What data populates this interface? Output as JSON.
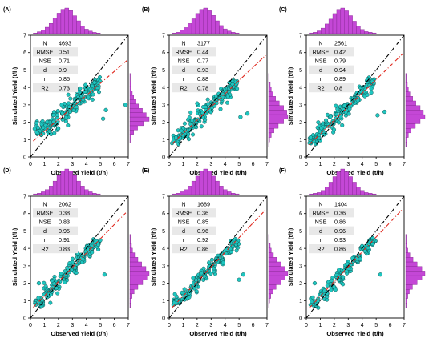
{
  "figure": {
    "colors": {
      "points": "#1fc6c0",
      "point_stroke": "#0b3b3a",
      "hist_fill": "#c447d6",
      "hist_stroke": "#7a1f86",
      "one_to_one": "#000000",
      "fit_line": "#e0271d",
      "stats_bg": "#e8e8e8"
    }
  },
  "chart_data": [
    {
      "panel": "(A)",
      "type": "scatter",
      "xlabel": "Observed Yield (t/h)",
      "ylabel": "Simulated Yield (t/h)",
      "xlim": [
        0,
        7
      ],
      "ylim": [
        0,
        7
      ],
      "xticks": [
        0,
        1,
        2,
        3,
        4,
        5,
        6,
        7
      ],
      "yticks": [
        0,
        1,
        2,
        3,
        4,
        5,
        6,
        7
      ],
      "stats": [
        {
          "label": "N",
          "value": "4693"
        },
        {
          "label": "RMSE",
          "value": "0.51"
        },
        {
          "label": "NSE",
          "value": "0.71"
        },
        {
          "label": "d",
          "value": "0.9"
        },
        {
          "label": "r",
          "value": "0.85"
        },
        {
          "label": "R2",
          "value": "0.73"
        }
      ],
      "fit_line": {
        "slope": 0.69,
        "intercept": 0.78
      },
      "one_to_one": true,
      "point_cloud": [
        {
          "x": 0.6,
          "y": 1.7,
          "spread_y": 0.55
        },
        {
          "x": 1.2,
          "y": 1.8,
          "spread_y": 0.55
        },
        {
          "x": 1.8,
          "y": 2.1,
          "spread_y": 0.6
        },
        {
          "x": 2.4,
          "y": 2.5,
          "spread_y": 0.6
        },
        {
          "x": 3.0,
          "y": 3.0,
          "spread_y": 0.55
        },
        {
          "x": 3.6,
          "y": 3.4,
          "spread_y": 0.5
        },
        {
          "x": 4.2,
          "y": 3.8,
          "spread_y": 0.45
        },
        {
          "x": 4.7,
          "y": 4.2,
          "spread_y": 0.4
        }
      ],
      "outliers": [
        {
          "x": 5.4,
          "y": 2.7
        },
        {
          "x": 6.8,
          "y": 3.0
        },
        {
          "x": 5.2,
          "y": 2.2
        }
      ],
      "hist_x": [
        1,
        3,
        6,
        10,
        16,
        24,
        32,
        38,
        40,
        36,
        28,
        20,
        12,
        7,
        4,
        2,
        1
      ],
      "hist_x_range": [
        0.2,
        5.0
      ],
      "hist_y": [
        1,
        3,
        8,
        16,
        28,
        40,
        34,
        26,
        18,
        12,
        8,
        5,
        3,
        2,
        1,
        1
      ],
      "hist_y_range": [
        0.8,
        4.8
      ]
    },
    {
      "panel": "(B)",
      "type": "scatter",
      "xlabel": "Observed Yield (t/h)",
      "ylabel": "Simulated Yield (t/h)",
      "xlim": [
        0,
        7
      ],
      "ylim": [
        0,
        7
      ],
      "xticks": [
        0,
        1,
        2,
        3,
        4,
        5,
        6,
        7
      ],
      "yticks": [
        0,
        1,
        2,
        3,
        4,
        5,
        6,
        7
      ],
      "stats": [
        {
          "label": "N",
          "value": "3177"
        },
        {
          "label": "RMSE",
          "value": "0.44"
        },
        {
          "label": "NSE",
          "value": "0.77"
        },
        {
          "label": "d",
          "value": "0.93"
        },
        {
          "label": "r",
          "value": "0.88"
        },
        {
          "label": "R2",
          "value": "0.78"
        }
      ],
      "fit_line": {
        "slope": 0.76,
        "intercept": 0.6
      },
      "one_to_one": true,
      "point_cloud": [
        {
          "x": 0.5,
          "y": 1.1,
          "spread_y": 0.4
        },
        {
          "x": 1.1,
          "y": 1.5,
          "spread_y": 0.45
        },
        {
          "x": 1.7,
          "y": 1.9,
          "spread_y": 0.5
        },
        {
          "x": 2.3,
          "y": 2.4,
          "spread_y": 0.5
        },
        {
          "x": 2.9,
          "y": 2.8,
          "spread_y": 0.45
        },
        {
          "x": 3.5,
          "y": 3.3,
          "spread_y": 0.45
        },
        {
          "x": 4.1,
          "y": 3.7,
          "spread_y": 0.4
        },
        {
          "x": 4.6,
          "y": 4.1,
          "spread_y": 0.35
        }
      ],
      "outliers": [
        {
          "x": 5.6,
          "y": 2.5
        },
        {
          "x": 5.1,
          "y": 2.3
        }
      ],
      "hist_x": [
        1,
        2,
        5,
        9,
        15,
        22,
        30,
        36,
        38,
        34,
        27,
        19,
        12,
        7,
        4,
        2,
        1
      ],
      "hist_x_range": [
        0.2,
        5.0
      ],
      "hist_y": [
        1,
        2,
        5,
        10,
        18,
        28,
        36,
        34,
        28,
        20,
        13,
        8,
        5,
        3,
        1,
        1
      ],
      "hist_y_range": [
        0.6,
        4.8
      ]
    },
    {
      "panel": "(C)",
      "type": "scatter",
      "xlabel": "Observed Yield (t/h)",
      "ylabel": "Simulated Yield (t/h)",
      "xlim": [
        0,
        7
      ],
      "ylim": [
        0,
        7
      ],
      "xticks": [
        0,
        1,
        2,
        3,
        4,
        5,
        6,
        7
      ],
      "yticks": [
        0,
        1,
        2,
        3,
        4,
        5,
        6,
        7
      ],
      "stats": [
        {
          "label": "N",
          "value": "2561"
        },
        {
          "label": "RMSE",
          "value": "0.42"
        },
        {
          "label": "NSE",
          "value": "0.79"
        },
        {
          "label": "d",
          "value": "0.94"
        },
        {
          "label": "r",
          "value": "0.89"
        },
        {
          "label": "R2",
          "value": "0.8"
        }
      ],
      "fit_line": {
        "slope": 0.78,
        "intercept": 0.55
      },
      "one_to_one": true,
      "point_cloud": [
        {
          "x": 0.5,
          "y": 1.0,
          "spread_y": 0.4
        },
        {
          "x": 1.1,
          "y": 1.5,
          "spread_y": 0.45
        },
        {
          "x": 1.7,
          "y": 1.9,
          "spread_y": 0.45
        },
        {
          "x": 2.3,
          "y": 2.4,
          "spread_y": 0.45
        },
        {
          "x": 2.9,
          "y": 2.8,
          "spread_y": 0.45
        },
        {
          "x": 3.5,
          "y": 3.3,
          "spread_y": 0.4
        },
        {
          "x": 4.1,
          "y": 3.8,
          "spread_y": 0.4
        },
        {
          "x": 4.6,
          "y": 4.2,
          "spread_y": 0.35
        }
      ],
      "outliers": [
        {
          "x": 5.6,
          "y": 2.6
        },
        {
          "x": 5.1,
          "y": 2.4
        }
      ],
      "hist_x": [
        1,
        2,
        4,
        8,
        14,
        21,
        29,
        35,
        37,
        33,
        26,
        18,
        11,
        6,
        3,
        2,
        1
      ],
      "hist_x_range": [
        0.2,
        5.0
      ],
      "hist_y": [
        1,
        2,
        5,
        10,
        18,
        27,
        36,
        33,
        27,
        19,
        13,
        8,
        5,
        3,
        1,
        1
      ],
      "hist_y_range": [
        0.6,
        4.8
      ]
    },
    {
      "panel": "(D)",
      "type": "scatter",
      "xlabel": "Observed Yield (t/h)",
      "ylabel": "Simulated Yield (t/h)",
      "xlim": [
        0,
        7
      ],
      "ylim": [
        0,
        7
      ],
      "xticks": [
        0,
        1,
        2,
        3,
        4,
        5,
        6,
        7
      ],
      "yticks": [
        0,
        1,
        2,
        3,
        4,
        5,
        6,
        7
      ],
      "stats": [
        {
          "label": "N",
          "value": "2062"
        },
        {
          "label": "RMSE",
          "value": "0.38"
        },
        {
          "label": "NSE",
          "value": "0.83"
        },
        {
          "label": "d",
          "value": "0.95"
        },
        {
          "label": "r",
          "value": "0.91"
        },
        {
          "label": "R2",
          "value": "0.83"
        }
      ],
      "fit_line": {
        "slope": 0.82,
        "intercept": 0.45
      },
      "one_to_one": true,
      "point_cloud": [
        {
          "x": 0.6,
          "y": 0.9,
          "spread_y": 0.35
        },
        {
          "x": 1.2,
          "y": 1.4,
          "spread_y": 0.4
        },
        {
          "x": 1.8,
          "y": 1.9,
          "spread_y": 0.4
        },
        {
          "x": 2.4,
          "y": 2.4,
          "spread_y": 0.4
        },
        {
          "x": 3.0,
          "y": 2.9,
          "spread_y": 0.4
        },
        {
          "x": 3.6,
          "y": 3.4,
          "spread_y": 0.35
        },
        {
          "x": 4.2,
          "y": 3.9,
          "spread_y": 0.35
        },
        {
          "x": 4.7,
          "y": 4.3,
          "spread_y": 0.3
        }
      ],
      "outliers": [
        {
          "x": 5.3,
          "y": 2.5
        },
        {
          "x": 0.6,
          "y": 2.0
        }
      ],
      "hist_x": [
        1,
        2,
        4,
        7,
        12,
        19,
        27,
        33,
        36,
        33,
        27,
        19,
        12,
        7,
        4,
        2,
        1
      ],
      "hist_x_range": [
        0.2,
        5.0
      ],
      "hist_y": [
        1,
        2,
        4,
        8,
        15,
        24,
        32,
        36,
        30,
        22,
        15,
        9,
        5,
        3,
        1,
        1
      ],
      "hist_y_range": [
        0.6,
        4.8
      ]
    },
    {
      "panel": "(E)",
      "type": "scatter",
      "xlabel": "Observed Yield (t/h)",
      "ylabel": "Simulated Yield (t/h)",
      "xlim": [
        0,
        7
      ],
      "ylim": [
        0,
        7
      ],
      "xticks": [
        0,
        1,
        2,
        3,
        4,
        5,
        6,
        7
      ],
      "yticks": [
        0,
        1,
        2,
        3,
        4,
        5,
        6,
        7
      ],
      "stats": [
        {
          "label": "N",
          "value": "1689"
        },
        {
          "label": "RMSE",
          "value": "0.36"
        },
        {
          "label": "NSE",
          "value": "0.85"
        },
        {
          "label": "d",
          "value": "0.96"
        },
        {
          "label": "r",
          "value": "0.92"
        },
        {
          "label": "R2",
          "value": "0.86"
        }
      ],
      "fit_line": {
        "slope": 0.84,
        "intercept": 0.42
      },
      "one_to_one": true,
      "point_cloud": [
        {
          "x": 0.6,
          "y": 0.9,
          "spread_y": 0.3
        },
        {
          "x": 1.2,
          "y": 1.4,
          "spread_y": 0.35
        },
        {
          "x": 1.8,
          "y": 1.9,
          "spread_y": 0.4
        },
        {
          "x": 2.4,
          "y": 2.4,
          "spread_y": 0.4
        },
        {
          "x": 3.0,
          "y": 2.9,
          "spread_y": 0.35
        },
        {
          "x": 3.6,
          "y": 3.4,
          "spread_y": 0.35
        },
        {
          "x": 4.2,
          "y": 3.9,
          "spread_y": 0.3
        },
        {
          "x": 4.7,
          "y": 4.3,
          "spread_y": 0.3
        }
      ],
      "outliers": [
        {
          "x": 5.3,
          "y": 2.5
        },
        {
          "x": 5.0,
          "y": 2.2
        }
      ],
      "hist_x": [
        1,
        2,
        4,
        7,
        12,
        19,
        26,
        33,
        36,
        33,
        26,
        19,
        12,
        7,
        4,
        2,
        1
      ],
      "hist_x_range": [
        0.2,
        5.0
      ],
      "hist_y": [
        1,
        2,
        4,
        8,
        14,
        23,
        31,
        36,
        31,
        23,
        15,
        9,
        5,
        3,
        1,
        1
      ],
      "hist_y_range": [
        0.6,
        4.8
      ]
    },
    {
      "panel": "(F)",
      "type": "scatter",
      "xlabel": "Observed Yield (t/h)",
      "ylabel": "Simulated Yield (t/h)",
      "xlim": [
        0,
        7
      ],
      "ylim": [
        0,
        7
      ],
      "xticks": [
        0,
        1,
        2,
        3,
        4,
        5,
        6,
        7
      ],
      "yticks": [
        0,
        1,
        2,
        3,
        4,
        5,
        6,
        7
      ],
      "stats": [
        {
          "label": "N",
          "value": "1404"
        },
        {
          "label": "RMSE",
          "value": "0.36"
        },
        {
          "label": "NSE",
          "value": "0.86"
        },
        {
          "label": "d",
          "value": "0.96"
        },
        {
          "label": "r",
          "value": "0.93"
        },
        {
          "label": "R2",
          "value": "0.86"
        }
      ],
      "fit_line": {
        "slope": 0.85,
        "intercept": 0.4
      },
      "one_to_one": true,
      "point_cloud": [
        {
          "x": 0.6,
          "y": 0.9,
          "spread_y": 0.3
        },
        {
          "x": 1.2,
          "y": 1.4,
          "spread_y": 0.35
        },
        {
          "x": 1.8,
          "y": 1.9,
          "spread_y": 0.35
        },
        {
          "x": 2.4,
          "y": 2.4,
          "spread_y": 0.35
        },
        {
          "x": 3.0,
          "y": 2.9,
          "spread_y": 0.35
        },
        {
          "x": 3.6,
          "y": 3.4,
          "spread_y": 0.3
        },
        {
          "x": 4.2,
          "y": 3.9,
          "spread_y": 0.3
        },
        {
          "x": 4.7,
          "y": 4.3,
          "spread_y": 0.3
        }
      ],
      "outliers": [
        {
          "x": 5.3,
          "y": 2.5
        },
        {
          "x": 0.6,
          "y": 2.0
        }
      ],
      "hist_x": [
        1,
        2,
        3,
        6,
        11,
        18,
        26,
        33,
        37,
        33,
        26,
        18,
        11,
        6,
        3,
        2,
        1
      ],
      "hist_x_range": [
        0.2,
        5.0
      ],
      "hist_y": [
        1,
        2,
        4,
        7,
        13,
        22,
        31,
        37,
        31,
        22,
        14,
        8,
        4,
        2,
        1,
        1
      ],
      "hist_y_range": [
        0.6,
        4.8
      ]
    }
  ]
}
